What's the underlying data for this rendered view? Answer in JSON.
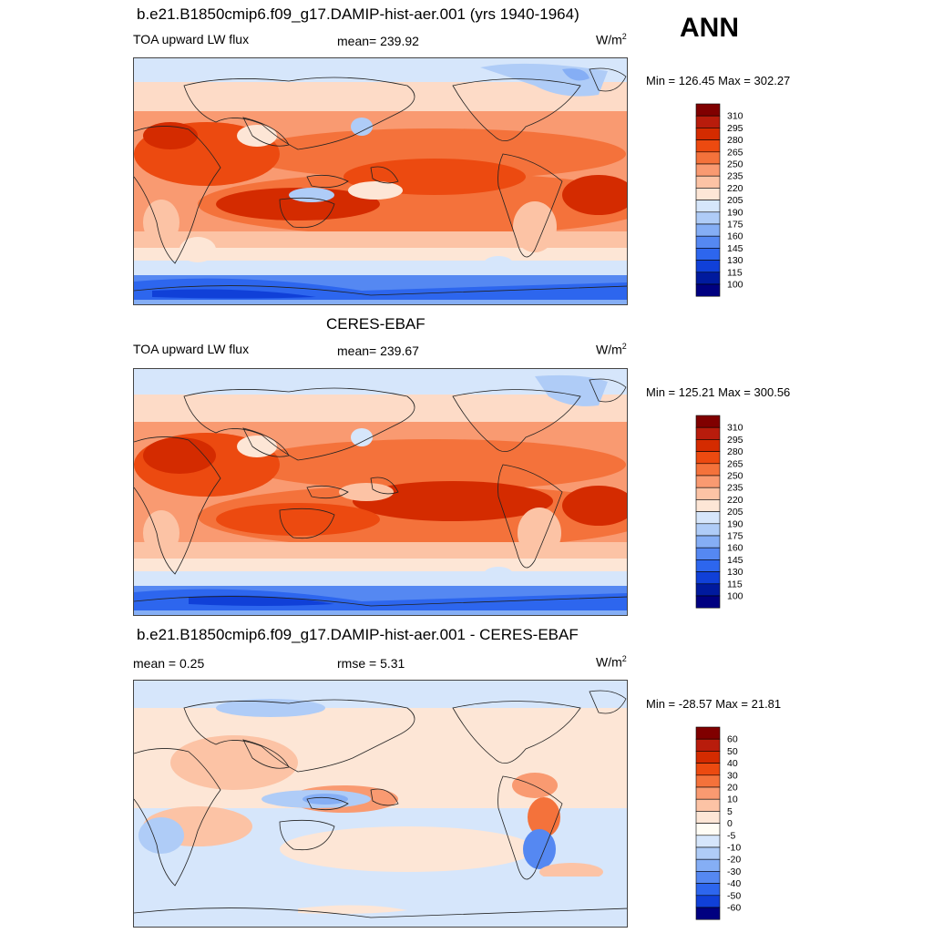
{
  "season": "ANN",
  "panels": [
    {
      "id": "model",
      "title": "b.e21.B1850cmip6.f09_g17.DAMIP-hist-aer.001 (yrs 1940-1964)",
      "left_label": "TOA upward LW flux",
      "center_label": "mean= 239.92",
      "units_base": "W/m",
      "units_sup": "2",
      "minmax": "Min = 126.45 Max = 302.27",
      "colorbar": {
        "labels": [
          "310",
          "295",
          "280",
          "265",
          "250",
          "235",
          "220",
          "205",
          "190",
          "175",
          "160",
          "145",
          "130",
          "115",
          "100"
        ],
        "colors": [
          "#800000",
          "#b81c0c",
          "#d42b00",
          "#ec4a10",
          "#f4723b",
          "#f99a71",
          "#fcc3a5",
          "#fde6d6",
          "#d6e6fb",
          "#afccf7",
          "#85aef5",
          "#5588f2",
          "#2d66ee",
          "#1040d8",
          "#001a9e",
          "#000080"
        ]
      }
    },
    {
      "id": "obs",
      "title": "CERES-EBAF",
      "left_label": "TOA upward LW flux",
      "center_label": "mean= 239.67",
      "units_base": "W/m",
      "units_sup": "2",
      "minmax": "Min = 125.21 Max = 300.56",
      "colorbar": {
        "labels": [
          "310",
          "295",
          "280",
          "265",
          "250",
          "235",
          "220",
          "205",
          "190",
          "175",
          "160",
          "145",
          "130",
          "115",
          "100"
        ],
        "colors": [
          "#800000",
          "#b81c0c",
          "#d42b00",
          "#ec4a10",
          "#f4723b",
          "#f99a71",
          "#fcc3a5",
          "#fde6d6",
          "#d6e6fb",
          "#afccf7",
          "#85aef5",
          "#5588f2",
          "#2d66ee",
          "#1040d8",
          "#001a9e",
          "#000080"
        ]
      }
    },
    {
      "id": "diff",
      "title": "b.e21.B1850cmip6.f09_g17.DAMIP-hist-aer.001 - CERES-EBAF",
      "left_label": "mean =   0.25",
      "center_label": "rmse =   5.31",
      "units_base": "W/m",
      "units_sup": "2",
      "minmax": "Min = -28.57 Max =  21.81",
      "colorbar": {
        "labels": [
          "60",
          "50",
          "40",
          "30",
          "20",
          "10",
          "5",
          "0",
          "-5",
          "-10",
          "-20",
          "-30",
          "-40",
          "-50",
          "-60"
        ],
        "colors": [
          "#800000",
          "#b81c0c",
          "#d42b00",
          "#ec4a10",
          "#f4723b",
          "#f99a71",
          "#fcc3a5",
          "#fde6d6",
          "#fffdf5",
          "#d6e6fb",
          "#afccf7",
          "#85aef5",
          "#5588f2",
          "#2d66ee",
          "#1040d8",
          "#000080"
        ]
      }
    }
  ],
  "chart_data": [
    {
      "type": "heatmap",
      "title": "b.e21.B1850cmip6.f09_g17.DAMIP-hist-aer.001 (yrs 1940-1964)",
      "variable": "TOA upward LW flux",
      "units": "W/m2",
      "mean": 239.92,
      "min": 126.45,
      "max": 302.27,
      "contour_levels": [
        100,
        115,
        130,
        145,
        160,
        175,
        190,
        205,
        220,
        235,
        250,
        265,
        280,
        295,
        310
      ]
    },
    {
      "type": "heatmap",
      "title": "CERES-EBAF",
      "variable": "TOA upward LW flux",
      "units": "W/m2",
      "mean": 239.67,
      "min": 125.21,
      "max": 300.56,
      "contour_levels": [
        100,
        115,
        130,
        145,
        160,
        175,
        190,
        205,
        220,
        235,
        250,
        265,
        280,
        295,
        310
      ]
    },
    {
      "type": "heatmap",
      "title": "b.e21.B1850cmip6.f09_g17.DAMIP-hist-aer.001 - CERES-EBAF",
      "variable": "difference",
      "units": "W/m2",
      "mean": 0.25,
      "rmse": 5.31,
      "min": -28.57,
      "max": 21.81,
      "contour_levels": [
        -60,
        -50,
        -40,
        -30,
        -20,
        -10,
        -5,
        0,
        5,
        10,
        20,
        30,
        40,
        50,
        60
      ]
    }
  ]
}
